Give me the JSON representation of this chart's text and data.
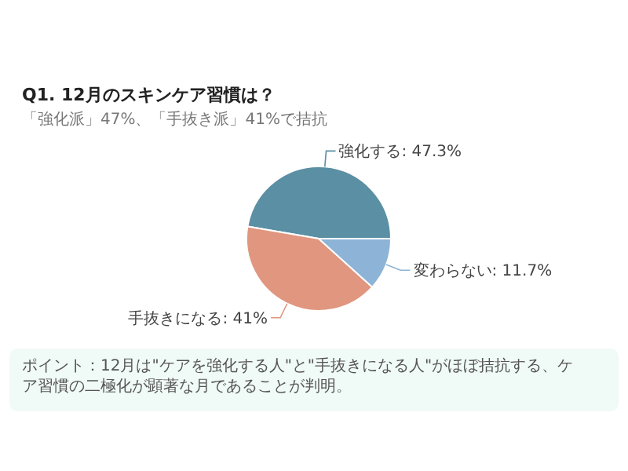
{
  "chart_data": {
    "type": "pie",
    "title": "Q1. 12月のスキンケア習慣は？",
    "subtitle": "「強化派」47%、「手抜き派」41%で拮抗",
    "categories": [
      "強化する",
      "手抜きになる",
      "変わらない"
    ],
    "values": [
      47.3,
      41,
      11.7
    ],
    "value_labels": [
      "47.3%",
      "41%",
      "11.7%"
    ],
    "colors": [
      "#5b8fa3",
      "#e0967f",
      "#8db4d6"
    ],
    "annotations": [
      "ポイント：12月は\"ケアを強化する人\"と\"手抜きになる人\"がほぼ拮抗する、ケア習慣の二極化が顕著な月であることが判明。"
    ]
  }
}
